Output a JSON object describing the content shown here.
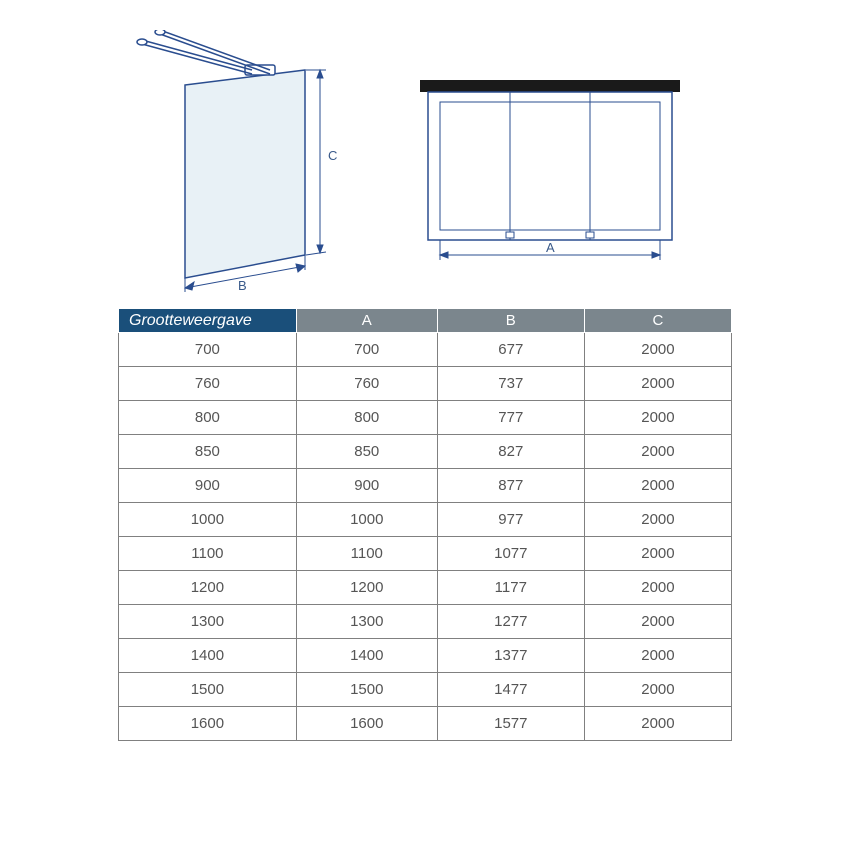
{
  "diagram": {
    "labels": {
      "A": "A",
      "B": "B",
      "C": "C"
    },
    "stroke": "#2a4d8f",
    "glass_fill": "#e8f1f6",
    "glass_edge": "#2a4d8f",
    "black": "#1a1a1a",
    "dim_color": "#2a4d8f",
    "label_color": "#3a5a8a",
    "label_fontsize": 13
  },
  "table": {
    "header_bg_first": "#1a4f7a",
    "header_bg": "#7b868d",
    "header_fg": "#ffffff",
    "border_color": "#808080",
    "cell_fg": "#555555",
    "fontsize": 15,
    "columns": [
      "Grootteweergave",
      "A",
      "B",
      "C"
    ],
    "rows": [
      [
        "700",
        "700",
        "677",
        "2000"
      ],
      [
        "760",
        "760",
        "737",
        "2000"
      ],
      [
        "800",
        "800",
        "777",
        "2000"
      ],
      [
        "850",
        "850",
        "827",
        "2000"
      ],
      [
        "900",
        "900",
        "877",
        "2000"
      ],
      [
        "1000",
        "1000",
        "977",
        "2000"
      ],
      [
        "1100",
        "1100",
        "1077",
        "2000"
      ],
      [
        "1200",
        "1200",
        "1177",
        "2000"
      ],
      [
        "1300",
        "1300",
        "1277",
        "2000"
      ],
      [
        "1400",
        "1400",
        "1377",
        "2000"
      ],
      [
        "1500",
        "1500",
        "1477",
        "2000"
      ],
      [
        "1600",
        "1600",
        "1577",
        "2000"
      ]
    ]
  }
}
